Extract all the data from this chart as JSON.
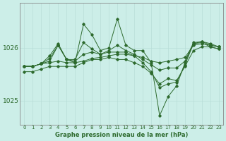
{
  "title": "Graphe pression niveau de la mer (hPa)",
  "background_color": "#cceee8",
  "grid_color": "#b8ddd8",
  "line_color": "#2d6a2d",
  "x_ticks": [
    0,
    1,
    2,
    3,
    4,
    5,
    6,
    7,
    8,
    9,
    10,
    11,
    12,
    13,
    14,
    15,
    16,
    17,
    18,
    19,
    20,
    21,
    22,
    23
  ],
  "series": [
    [
      1025.65,
      1025.65,
      1025.7,
      1025.72,
      1025.75,
      1025.72,
      1025.72,
      1025.75,
      1025.8,
      1025.82,
      1025.85,
      1025.88,
      1025.88,
      1025.85,
      1025.82,
      1025.75,
      1025.72,
      1025.75,
      1025.78,
      1025.82,
      1026.05,
      1026.08,
      1026.05,
      1026.02
    ],
    [
      1025.65,
      1025.65,
      1025.7,
      1025.8,
      1026.05,
      1025.78,
      1025.78,
      1026.1,
      1025.98,
      1025.88,
      1025.95,
      1026.05,
      1025.95,
      1025.88,
      1025.78,
      1025.68,
      1025.58,
      1025.62,
      1025.62,
      1025.75,
      1026.1,
      1026.12,
      1026.08,
      1026.02
    ],
    [
      1025.65,
      1025.65,
      1025.7,
      1025.85,
      1026.08,
      1025.78,
      1025.72,
      1026.45,
      1026.25,
      1025.95,
      1026.0,
      1026.55,
      1026.05,
      1025.95,
      1025.95,
      1025.72,
      1024.72,
      1025.08,
      1025.28,
      1025.72,
      1026.08,
      1026.1,
      1026.02,
      1025.98
    ],
    [
      1025.65,
      1025.65,
      1025.7,
      1025.75,
      1026.05,
      1025.78,
      1025.75,
      1025.88,
      1025.92,
      1025.88,
      1025.92,
      1025.92,
      1025.92,
      1025.85,
      1025.72,
      1025.55,
      1025.25,
      1025.32,
      1025.35,
      1025.68,
      1026.08,
      1026.12,
      1026.05,
      1026.02
    ],
    [
      1025.55,
      1025.55,
      1025.6,
      1025.65,
      1025.65,
      1025.65,
      1025.65,
      1025.72,
      1025.78,
      1025.78,
      1025.82,
      1025.78,
      1025.78,
      1025.72,
      1025.65,
      1025.52,
      1025.32,
      1025.42,
      1025.38,
      1025.65,
      1025.95,
      1026.02,
      1026.02,
      1025.98
    ]
  ],
  "ylim": [
    1024.55,
    1026.85
  ],
  "yticks": [
    1025,
    1026
  ],
  "figsize": [
    3.2,
    2.0
  ],
  "dpi": 100
}
